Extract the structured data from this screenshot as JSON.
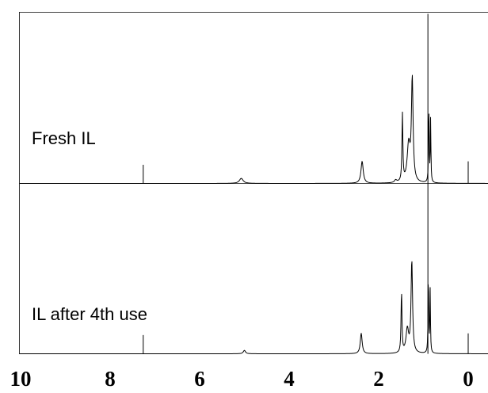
{
  "chart_data": {
    "type": "line",
    "title": "",
    "xlabel": "",
    "ylabel": "",
    "x_reversed": true,
    "xlim": [
      10,
      0
    ],
    "x_ticks": [
      {
        "value": 10,
        "label": "10"
      },
      {
        "value": 8,
        "label": "8"
      },
      {
        "value": 6,
        "label": "6"
      },
      {
        "value": 4,
        "label": "4"
      },
      {
        "value": 2,
        "label": "2"
      },
      {
        "value": 0,
        "label": "0"
      }
    ],
    "grid": false,
    "legend": "none",
    "panels": [
      {
        "label": "Fresh IL",
        "peaks": [
          {
            "shift": 5.07,
            "height": 0.03,
            "width": 0.05
          },
          {
            "shift": 2.37,
            "height": 0.13,
            "width": 0.03
          },
          {
            "shift": 1.62,
            "height": 0.015,
            "width": 0.03
          },
          {
            "shift": 1.47,
            "height": 0.4,
            "width": 0.012
          },
          {
            "shift": 1.33,
            "height": 0.22,
            "width": 0.04
          },
          {
            "shift": 1.25,
            "height": 0.6,
            "width": 0.022
          },
          {
            "shift": 0.88,
            "height": 0.48,
            "width": 0.008
          },
          {
            "shift": 0.84,
            "height": 0.37,
            "width": 0.008
          }
        ],
        "spikes": [
          {
            "shift": 7.26,
            "height": 0.11
          },
          {
            "shift": 0.9,
            "height": 1.0
          },
          {
            "shift": 0.0,
            "height": 0.13
          }
        ]
      },
      {
        "label": "IL after 4th use",
        "peaks": [
          {
            "shift": 5.0,
            "height": 0.02,
            "width": 0.03
          },
          {
            "shift": 2.39,
            "height": 0.12,
            "width": 0.025
          },
          {
            "shift": 1.49,
            "height": 0.36,
            "width": 0.012
          },
          {
            "shift": 1.36,
            "height": 0.14,
            "width": 0.035
          },
          {
            "shift": 1.26,
            "height": 0.54,
            "width": 0.02
          },
          {
            "shift": 0.89,
            "height": 0.48,
            "width": 0.008
          },
          {
            "shift": 0.85,
            "height": 0.37,
            "width": 0.008
          }
        ],
        "spikes": [
          {
            "shift": 7.26,
            "height": 0.11
          },
          {
            "shift": 0.9,
            "height": 1.0
          },
          {
            "shift": 0.0,
            "height": 0.12
          }
        ]
      }
    ]
  }
}
